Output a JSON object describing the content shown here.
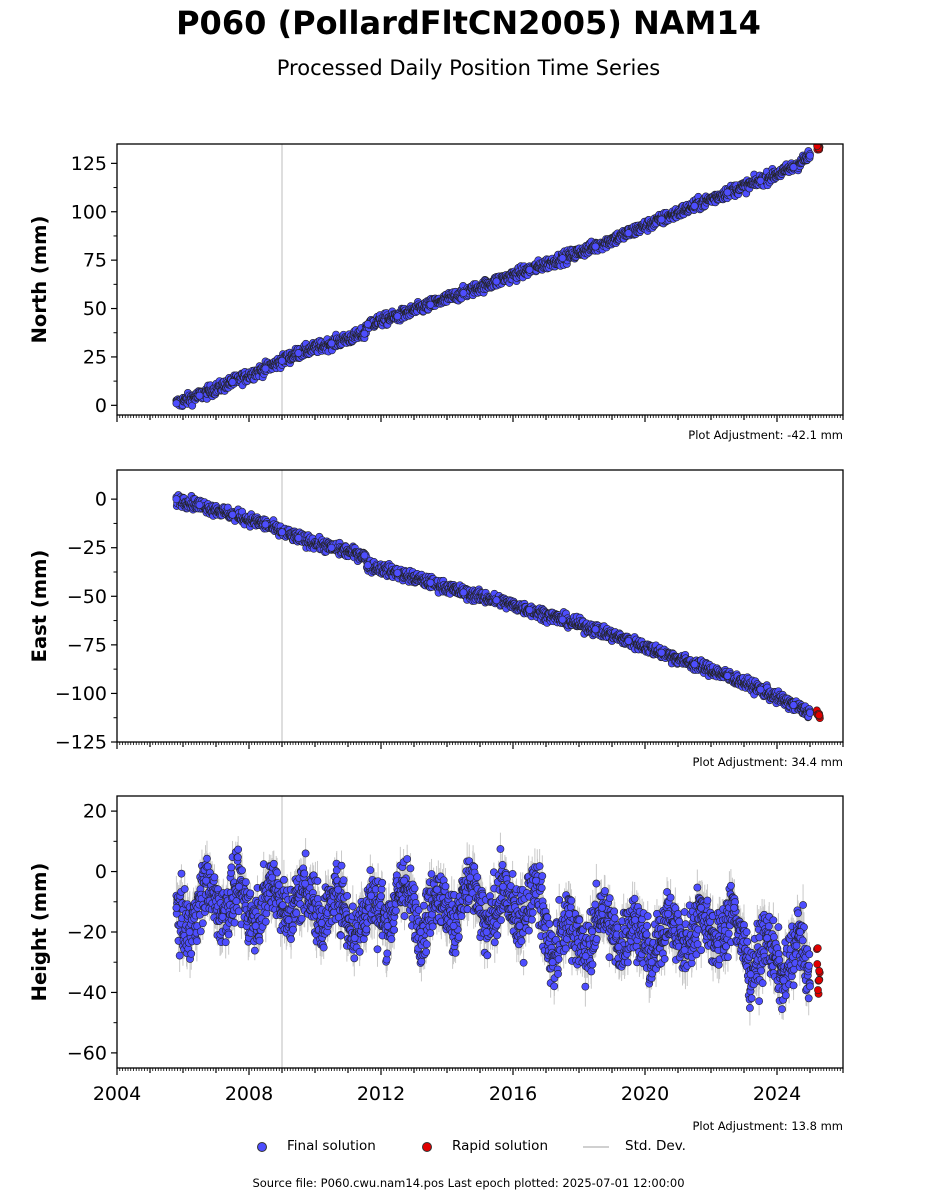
{
  "header": {
    "title": "P060 (PollardFltCN2005) NAM14",
    "subtitle": "Processed Daily Position Time Series"
  },
  "legend": {
    "final": "Final solution",
    "rapid": "Rapid solution",
    "stddev": "Std. Dev."
  },
  "footer": {
    "source": "Source file: P060.cwu.nam14.pos  Last epoch plotted: 2025-07-01 12:00:00"
  },
  "colors": {
    "final": "#4d4dff",
    "rapid": "#e00000",
    "stddev": "#c8c8c8",
    "vline": "#d3d3d3"
  },
  "chart_data": [
    {
      "type": "scatter",
      "name": "north",
      "ylabel": "North (mm)",
      "adjustment": "Plot Adjustment: -42.1 mm",
      "xlim": [
        2004.0,
        2026.0
      ],
      "ylim": [
        -5,
        135
      ],
      "yticks": [
        0,
        25,
        50,
        75,
        100,
        125
      ],
      "ytick_labels": [
        "0",
        "25",
        "50",
        "75",
        "100",
        "125"
      ],
      "x_tick_labels_shown": false,
      "vline_x": 2009.0,
      "series": [
        {
          "name": "Final solution",
          "x": [
            2005.8,
            2006.5,
            2007.5,
            2008.5,
            2009.0,
            2009.5,
            2010.5,
            2011.5,
            2011.6,
            2012.5,
            2013.5,
            2014.5,
            2015.5,
            2016.5,
            2017.5,
            2018.5,
            2019.5,
            2020.5,
            2021.5,
            2022.5,
            2023.5,
            2024.5,
            2025.0
          ],
          "y": [
            1,
            5,
            12,
            19,
            23,
            27,
            32,
            37,
            42,
            46,
            52,
            58,
            64,
            70,
            76,
            82,
            89,
            96,
            103,
            110,
            116,
            123,
            129
          ]
        },
        {
          "name": "Rapid solution",
          "x": [
            2025.2,
            2025.3
          ],
          "y": [
            132,
            133
          ]
        }
      ]
    },
    {
      "type": "scatter",
      "name": "east",
      "ylabel": "East (mm)",
      "adjustment": "Plot Adjustment: 34.4 mm",
      "xlim": [
        2004.0,
        2026.0
      ],
      "ylim": [
        -125,
        15
      ],
      "yticks": [
        0,
        -25,
        -50,
        -75,
        -100,
        -125
      ],
      "ytick_labels": [
        "0",
        "−25",
        "−50",
        "−75",
        "−100",
        "−125"
      ],
      "x_tick_labels_shown": false,
      "vline_x": 2009.0,
      "series": [
        {
          "name": "Final solution",
          "x": [
            2005.8,
            2006.5,
            2007.5,
            2008.5,
            2009.0,
            2009.5,
            2010.5,
            2011.5,
            2011.6,
            2012.5,
            2013.5,
            2014.5,
            2015.5,
            2016.5,
            2017.5,
            2018.5,
            2019.5,
            2020.5,
            2021.5,
            2022.5,
            2023.5,
            2024.5,
            2025.0
          ],
          "y": [
            0,
            -3,
            -8,
            -13,
            -17,
            -20,
            -25,
            -29,
            -34,
            -38,
            -43,
            -48,
            -52,
            -57,
            -62,
            -67,
            -73,
            -79,
            -85,
            -91,
            -98,
            -106,
            -110
          ]
        },
        {
          "name": "Rapid solution",
          "x": [
            2025.2,
            2025.3
          ],
          "y": [
            -110,
            -112
          ]
        }
      ]
    },
    {
      "type": "scatter",
      "name": "height",
      "ylabel": "Height (mm)",
      "adjustment": "Plot Adjustment: 13.8 mm",
      "xlim": [
        2004.0,
        2026.0
      ],
      "ylim": [
        -65,
        25
      ],
      "yticks": [
        20,
        0,
        -20,
        -40,
        -60
      ],
      "ytick_labels": [
        "20",
        "0",
        "−20",
        "−40",
        "−60"
      ],
      "x_tick_labels_shown": true,
      "xticks": [
        2004,
        2008,
        2012,
        2016,
        2020,
        2024
      ],
      "xtick_labels": [
        "2004",
        "2008",
        "2012",
        "2016",
        "2020",
        "2024"
      ],
      "vline_x": 2009.0,
      "series": [
        {
          "name": "Final solution",
          "x": [
            2005.8,
            2006.2,
            2006.7,
            2007.2,
            2007.7,
            2008.2,
            2008.7,
            2009.2,
            2009.7,
            2010.2,
            2010.7,
            2011.2,
            2011.7,
            2012.2,
            2012.7,
            2013.2,
            2013.7,
            2014.2,
            2014.7,
            2015.2,
            2015.7,
            2016.2,
            2016.7,
            2017.2,
            2017.7,
            2018.2,
            2018.7,
            2019.2,
            2019.7,
            2020.2,
            2020.7,
            2021.2,
            2021.7,
            2022.2,
            2022.7,
            2023.2,
            2023.7,
            2024.2,
            2024.7,
            2025.0
          ],
          "y": [
            -12,
            -20,
            -3,
            -15,
            -5,
            -18,
            -2,
            -16,
            -4,
            -17,
            -6,
            -22,
            -8,
            -18,
            -3,
            -20,
            -6,
            -18,
            -2,
            -20,
            -5,
            -18,
            -3,
            -30,
            -14,
            -28,
            -12,
            -25,
            -16,
            -30,
            -14,
            -26,
            -12,
            -24,
            -12,
            -34,
            -22,
            -36,
            -20,
            -38
          ]
        },
        {
          "name": "Rapid solution",
          "x": [
            2025.2,
            2025.3
          ],
          "y": [
            -30,
            -35
          ]
        }
      ]
    }
  ]
}
